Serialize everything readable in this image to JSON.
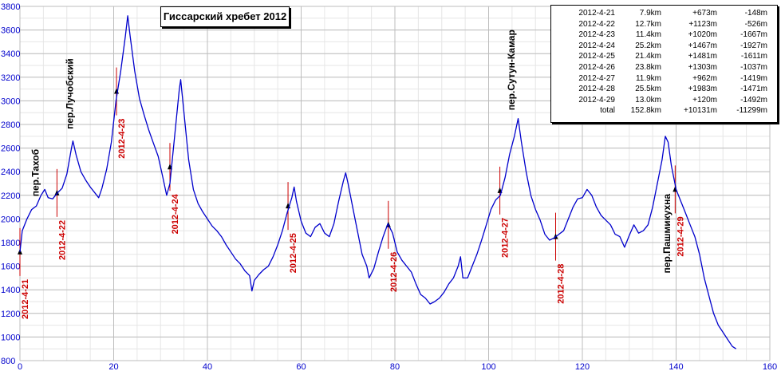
{
  "title": "Гиссарский хребет 2012",
  "chart_data": {
    "type": "line",
    "xlim": [
      0,
      160
    ],
    "ylim": [
      800,
      3800
    ],
    "x_ticks": [
      0,
      20,
      40,
      60,
      80,
      100,
      120,
      140,
      160
    ],
    "y_ticks": [
      800,
      1000,
      1200,
      1400,
      1600,
      1800,
      2000,
      2200,
      2400,
      2600,
      2800,
      3000,
      3200,
      3400,
      3600,
      3800
    ],
    "grid": true,
    "line_color": "#0000cc",
    "marker_color": "#cc0000",
    "profile": [
      [
        0.0,
        1720
      ],
      [
        0.5,
        1900
      ],
      [
        1.5,
        2000
      ],
      [
        2.5,
        2080
      ],
      [
        3.5,
        2110
      ],
      [
        4.5,
        2200
      ],
      [
        5.3,
        2250
      ],
      [
        6.0,
        2180
      ],
      [
        7.0,
        2170
      ],
      [
        8.0,
        2220
      ],
      [
        9.0,
        2260
      ],
      [
        10.0,
        2380
      ],
      [
        11.0,
        2600
      ],
      [
        11.3,
        2660
      ],
      [
        12.0,
        2540
      ],
      [
        13.0,
        2400
      ],
      [
        14.0,
        2330
      ],
      [
        15.0,
        2270
      ],
      [
        16.0,
        2220
      ],
      [
        16.8,
        2180
      ],
      [
        17.5,
        2260
      ],
      [
        18.5,
        2420
      ],
      [
        19.5,
        2650
      ],
      [
        20.5,
        3000
      ],
      [
        21.5,
        3250
      ],
      [
        22.5,
        3550
      ],
      [
        23.0,
        3720
      ],
      [
        23.5,
        3550
      ],
      [
        24.5,
        3250
      ],
      [
        25.5,
        3020
      ],
      [
        26.5,
        2880
      ],
      [
        27.5,
        2750
      ],
      [
        28.5,
        2640
      ],
      [
        29.5,
        2530
      ],
      [
        30.5,
        2350
      ],
      [
        31.3,
        2200
      ],
      [
        32.0,
        2300
      ],
      [
        33.0,
        2700
      ],
      [
        34.0,
        3100
      ],
      [
        34.3,
        3180
      ],
      [
        35.0,
        2900
      ],
      [
        36.0,
        2500
      ],
      [
        37.0,
        2250
      ],
      [
        38.0,
        2130
      ],
      [
        39.0,
        2060
      ],
      [
        40.0,
        2000
      ],
      [
        41.0,
        1940
      ],
      [
        42.0,
        1900
      ],
      [
        43.0,
        1850
      ],
      [
        44.0,
        1780
      ],
      [
        45.0,
        1720
      ],
      [
        46.0,
        1660
      ],
      [
        47.0,
        1620
      ],
      [
        48.0,
        1560
      ],
      [
        49.0,
        1520
      ],
      [
        49.5,
        1390
      ],
      [
        50.0,
        1480
      ],
      [
        51.0,
        1530
      ],
      [
        52.0,
        1570
      ],
      [
        53.0,
        1600
      ],
      [
        54.0,
        1680
      ],
      [
        55.0,
        1780
      ],
      [
        56.0,
        1900
      ],
      [
        57.0,
        2050
      ],
      [
        58.0,
        2180
      ],
      [
        58.5,
        2270
      ],
      [
        59.0,
        2150
      ],
      [
        60.0,
        1980
      ],
      [
        61.0,
        1880
      ],
      [
        62.0,
        1850
      ],
      [
        63.0,
        1930
      ],
      [
        64.0,
        1960
      ],
      [
        65.0,
        1880
      ],
      [
        66.0,
        1850
      ],
      [
        67.0,
        1960
      ],
      [
        68.0,
        2150
      ],
      [
        69.0,
        2320
      ],
      [
        69.5,
        2390
      ],
      [
        70.0,
        2300
      ],
      [
        71.0,
        2100
      ],
      [
        72.0,
        1900
      ],
      [
        73.0,
        1700
      ],
      [
        74.0,
        1600
      ],
      [
        74.5,
        1500
      ],
      [
        75.5,
        1580
      ],
      [
        76.5,
        1720
      ],
      [
        77.5,
        1850
      ],
      [
        78.5,
        1960
      ],
      [
        79.5,
        1880
      ],
      [
        80.5,
        1720
      ],
      [
        81.5,
        1650
      ],
      [
        82.5,
        1600
      ],
      [
        83.5,
        1550
      ],
      [
        84.5,
        1450
      ],
      [
        85.5,
        1360
      ],
      [
        86.5,
        1330
      ],
      [
        87.5,
        1280
      ],
      [
        88.5,
        1300
      ],
      [
        89.5,
        1330
      ],
      [
        90.5,
        1380
      ],
      [
        91.5,
        1450
      ],
      [
        92.5,
        1500
      ],
      [
        93.5,
        1600
      ],
      [
        94.0,
        1680
      ],
      [
        94.5,
        1500
      ],
      [
        95.5,
        1500
      ],
      [
        96.5,
        1600
      ],
      [
        97.5,
        1700
      ],
      [
        98.5,
        1820
      ],
      [
        99.5,
        1950
      ],
      [
        100.5,
        2080
      ],
      [
        101.5,
        2160
      ],
      [
        102.5,
        2200
      ],
      [
        103.5,
        2350
      ],
      [
        104.5,
        2550
      ],
      [
        105.5,
        2700
      ],
      [
        106.3,
        2850
      ],
      [
        107.0,
        2650
      ],
      [
        108.0,
        2400
      ],
      [
        109.0,
        2200
      ],
      [
        110.0,
        2080
      ],
      [
        111.0,
        1990
      ],
      [
        112.0,
        1870
      ],
      [
        113.0,
        1820
      ],
      [
        114.0,
        1840
      ],
      [
        115.0,
        1870
      ],
      [
        116.0,
        1900
      ],
      [
        117.0,
        2000
      ],
      [
        118.0,
        2100
      ],
      [
        119.0,
        2170
      ],
      [
        120.0,
        2180
      ],
      [
        121.0,
        2250
      ],
      [
        122.0,
        2200
      ],
      [
        123.0,
        2100
      ],
      [
        124.0,
        2030
      ],
      [
        125.0,
        1990
      ],
      [
        126.0,
        1950
      ],
      [
        127.0,
        1870
      ],
      [
        128.0,
        1850
      ],
      [
        129.0,
        1760
      ],
      [
        130.0,
        1860
      ],
      [
        131.0,
        1950
      ],
      [
        132.0,
        1880
      ],
      [
        133.0,
        1900
      ],
      [
        134.0,
        1950
      ],
      [
        135.0,
        2100
      ],
      [
        136.0,
        2300
      ],
      [
        137.0,
        2500
      ],
      [
        137.7,
        2700
      ],
      [
        138.3,
        2650
      ],
      [
        139.0,
        2450
      ],
      [
        140.0,
        2250
      ],
      [
        141.0,
        2150
      ],
      [
        142.0,
        2050
      ],
      [
        143.0,
        1950
      ],
      [
        144.0,
        1850
      ],
      [
        145.0,
        1700
      ],
      [
        146.0,
        1500
      ],
      [
        147.0,
        1350
      ],
      [
        148.0,
        1200
      ],
      [
        149.0,
        1100
      ],
      [
        150.0,
        1040
      ],
      [
        151.0,
        980
      ],
      [
        152.0,
        920
      ],
      [
        152.8,
        900
      ]
    ],
    "day_markers": [
      {
        "label": "2012-4-21",
        "x": 0.0,
        "y": 1720
      },
      {
        "label": "2012-4-22",
        "x": 7.9,
        "y": 2220
      },
      {
        "label": "2012-4-23",
        "x": 20.6,
        "y": 3080
      },
      {
        "label": "2012-4-24",
        "x": 32.0,
        "y": 2440
      },
      {
        "label": "2012-4-25",
        "x": 57.2,
        "y": 2110
      },
      {
        "label": "2012-4-26",
        "x": 78.6,
        "y": 1950
      },
      {
        "label": "2012-4-27",
        "x": 102.4,
        "y": 2240
      },
      {
        "label": "2012-4-28",
        "x": 114.3,
        "y": 1850
      },
      {
        "label": "2012-4-29",
        "x": 139.8,
        "y": 2250
      }
    ],
    "pass_labels": [
      {
        "label": "пер.Тахоб",
        "x": 4.0,
        "y": 2190
      },
      {
        "label": "пер.Лучобский",
        "x": 11.3,
        "y": 2760
      },
      {
        "label": "пер.Сутун-Камар",
        "x": 105.5,
        "y": 2920
      },
      {
        "label": "пер.Пашмикухна",
        "x": 138.7,
        "y": 1540
      }
    ],
    "stats_table": {
      "rows": [
        [
          "2012-4-21",
          "7.9km",
          "+673m",
          "-148m"
        ],
        [
          "2012-4-22",
          "12.7km",
          "+1123m",
          "-526m"
        ],
        [
          "2012-4-23",
          "11.4km",
          "+1020m",
          "-1667m"
        ],
        [
          "2012-4-24",
          "25.2km",
          "+1467m",
          "-1927m"
        ],
        [
          "2012-4-25",
          "21.4km",
          "+1481m",
          "-1611m"
        ],
        [
          "2012-4-26",
          "23.8km",
          "+1303m",
          "-1037m"
        ],
        [
          "2012-4-27",
          "11.9km",
          "+962m",
          "-1419m"
        ],
        [
          "2012-4-28",
          "25.5km",
          "+1983m",
          "-1471m"
        ],
        [
          "2012-4-29",
          "13.0km",
          "+120m",
          "-1492m"
        ],
        [
          "total",
          "152.8km",
          "+10131m",
          "-11299m"
        ]
      ]
    }
  }
}
